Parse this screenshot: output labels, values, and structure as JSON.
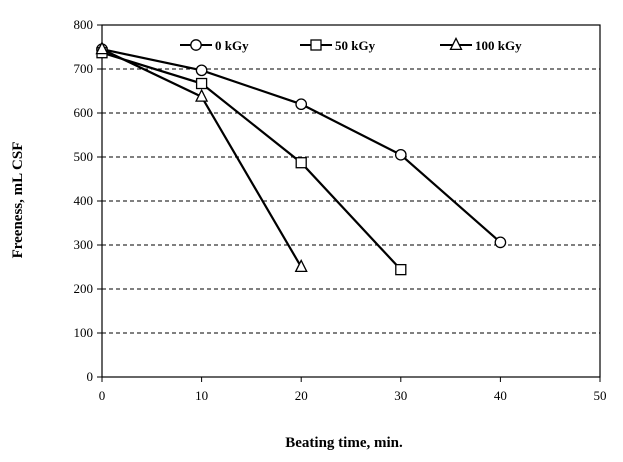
{
  "chart_data": {
    "type": "line",
    "title": "",
    "xlabel": "Beating time, min.",
    "ylabel": "Freeness, mL CSF",
    "xlim": [
      0,
      50
    ],
    "ylim": [
      0,
      800
    ],
    "x_ticks": [
      "0",
      "10",
      "20",
      "30",
      "40",
      "50"
    ],
    "y_ticks": [
      "0",
      "100",
      "200",
      "300",
      "400",
      "500",
      "600",
      "700",
      "800"
    ],
    "grid": "horizontal-dashed",
    "legend_position": "top",
    "series": [
      {
        "name": "0 kGy",
        "marker": "circle",
        "x": [
          0,
          10,
          20,
          30,
          40
        ],
        "y": [
          745,
          697,
          620,
          505,
          306
        ]
      },
      {
        "name": "50 kGy",
        "marker": "square",
        "x": [
          0,
          10,
          20,
          30
        ],
        "y": [
          737,
          667,
          487,
          244
        ]
      },
      {
        "name": "100 kGy",
        "marker": "triangle",
        "x": [
          0,
          10,
          20
        ],
        "y": [
          745,
          637,
          250
        ]
      }
    ],
    "colors": {
      "line": "#000000",
      "marker_fill": "#ffffff",
      "grid": "#000000"
    }
  }
}
